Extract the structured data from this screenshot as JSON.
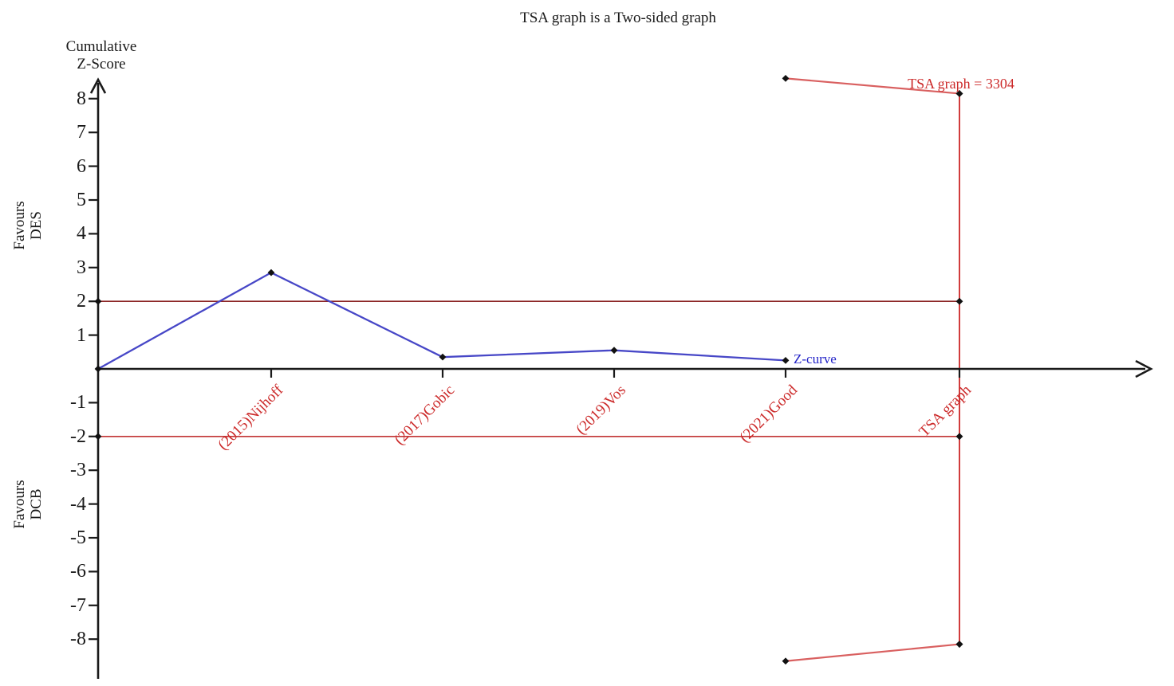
{
  "chart_data": {
    "type": "line",
    "title": "TSA graph is a Two-sided graph",
    "ylabel": "Cumulative Z-Score",
    "ylabel_lines": [
      "Cumulative",
      "Z-Score"
    ],
    "region_labels": {
      "top": "Favours DES",
      "top_lines": [
        "Favours",
        "DES"
      ],
      "bottom": "Favours DCB",
      "bottom_lines": [
        "Favours",
        "DCB"
      ]
    },
    "x_categories": [
      "(2015)Nijhoff",
      "(2017)Gobic",
      "(2019)Vos",
      "(2021)Good",
      "TSA graph"
    ],
    "y_ticks": [
      8,
      7,
      6,
      5,
      4,
      3,
      2,
      1,
      -1,
      -2,
      -3,
      -4,
      -5,
      -6,
      -7,
      -8
    ],
    "ylim": [
      -8.7,
      8.7
    ],
    "grid": false,
    "series": [
      {
        "name": "Z-curve",
        "label": "Z-curve",
        "color": "#4747c7",
        "x": [
          0,
          1,
          2,
          3,
          4
        ],
        "values": [
          0,
          2.85,
          0.35,
          0.55,
          0.25
        ]
      },
      {
        "name": "upper monitoring boundary",
        "color": "#d96060",
        "x": [
          3,
          4
        ],
        "values": [
          8.6,
          8.15
        ]
      },
      {
        "name": "lower monitoring boundary",
        "color": "#d96060",
        "x": [
          3,
          4
        ],
        "values": [
          -8.65,
          -8.15
        ]
      }
    ],
    "significance_lines": [
      {
        "value": 2,
        "color": "#8b2424"
      },
      {
        "value": -2,
        "color": "#c23535"
      }
    ],
    "tsa_vertical_line": {
      "x_category": "TSA graph",
      "from": -8.15,
      "to": 8.15,
      "color": "#cc2626",
      "marker_values": [
        8.15,
        2,
        -2,
        -8.15
      ]
    },
    "annotation": "TSA graph = 3304",
    "annotation_color": "#cc2a2a",
    "axis_color": "#1a1a1a",
    "category_label_color": "#cc2a2a",
    "marker_color": "#111111",
    "legend_position": "inline-right-of-curve"
  }
}
